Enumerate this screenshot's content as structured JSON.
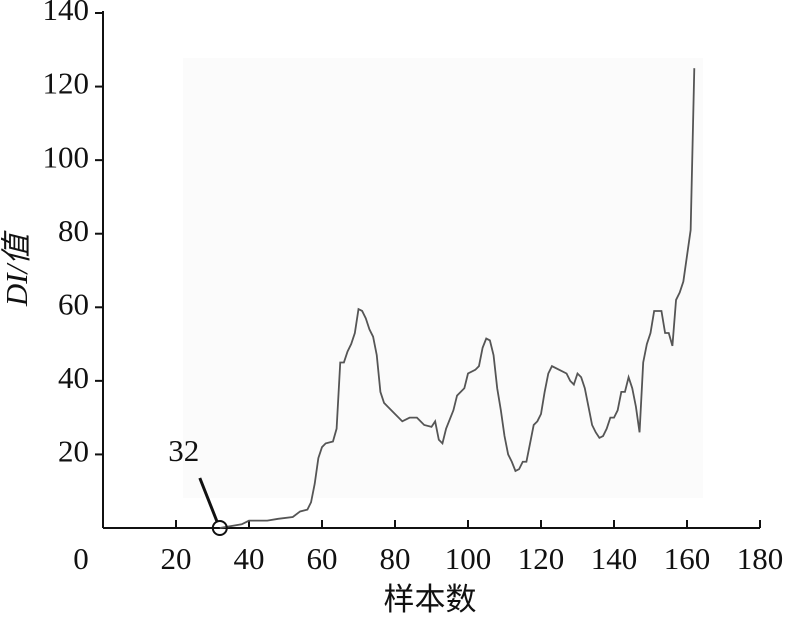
{
  "chart_data": {
    "type": "line",
    "x_label": "样本数",
    "y_label": "DI/值",
    "x": [
      32,
      35,
      38,
      40,
      45,
      48,
      52,
      54,
      56,
      57,
      58,
      59,
      60,
      61,
      63,
      64,
      65,
      66,
      67,
      68,
      69,
      70,
      71,
      72,
      73,
      74,
      75,
      76,
      77,
      78,
      80,
      82,
      84,
      86,
      88,
      90,
      91,
      92,
      93,
      94,
      96,
      97,
      99,
      100,
      102,
      103,
      104,
      105,
      106,
      107,
      108,
      109,
      110,
      111,
      112,
      113,
      114,
      115,
      116,
      117,
      118,
      119,
      120,
      121,
      122,
      123,
      125,
      127,
      128,
      129,
      130,
      131,
      132,
      133,
      134,
      135,
      136,
      137,
      138,
      139,
      140,
      141,
      142,
      143,
      144,
      145,
      146,
      147,
      148,
      149,
      150,
      151,
      152,
      153,
      154,
      155,
      156,
      157,
      158,
      159,
      160,
      161,
      162
    ],
    "series": [
      {
        "color": "#555555",
        "values": [
          0,
          0.5,
          1,
          2,
          2,
          2.5,
          3,
          4.5,
          5,
          7,
          12,
          19,
          22,
          23,
          23.5,
          27,
          45,
          45,
          48,
          50,
          53,
          59.5,
          59,
          57,
          54,
          52,
          47,
          37,
          34,
          33,
          31,
          29,
          30,
          30,
          28,
          27.5,
          29,
          24,
          23,
          27,
          32,
          36,
          38,
          42,
          43,
          44,
          49,
          51.5,
          51,
          47,
          38,
          32,
          25,
          20,
          18,
          15.5,
          16,
          18,
          18,
          23,
          28,
          29,
          31,
          37,
          42,
          44,
          43,
          42,
          40,
          39,
          42,
          41,
          38,
          33,
          28,
          26,
          24.5,
          25,
          27,
          30,
          30,
          32,
          37,
          37,
          41,
          38,
          33,
          26,
          45,
          50,
          53,
          59,
          59,
          59,
          53,
          53,
          49.5,
          62,
          64,
          67,
          74,
          81,
          125
        ]
      }
    ],
    "xlim": [
      0,
      180
    ],
    "ylim": [
      0,
      140
    ],
    "xticks": [
      0,
      20,
      40,
      60,
      80,
      100,
      120,
      140,
      160,
      180
    ],
    "yticks": [
      20,
      40,
      60,
      80,
      100,
      120,
      140
    ],
    "annotation": {
      "label": "32",
      "x": 32,
      "y": 0
    }
  }
}
